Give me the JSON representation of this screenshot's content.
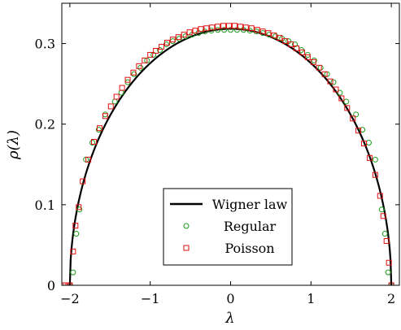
{
  "chart_data": {
    "type": "scatter",
    "xlabel": "λ",
    "ylabel": "ρ(λ)",
    "xlim": [
      -2.1,
      2.1
    ],
    "ylim": [
      0,
      0.35
    ],
    "x_ticks": [
      -2,
      -1,
      0,
      1,
      2
    ],
    "x_tick_labels": [
      "−2",
      "−1",
      "0",
      "1",
      "2"
    ],
    "y_ticks": [
      0,
      0.1,
      0.2,
      0.3
    ],
    "y_tick_labels": [
      "0",
      "0.1",
      "0.2",
      "0.3"
    ],
    "grid": false,
    "legend_position": "bottom-center",
    "series": [
      {
        "name": "Wigner law",
        "kind": "line",
        "color": "#000000",
        "formula": "sqrt(4 - x^2) / (2*pi)",
        "domain": [
          -2,
          2
        ]
      },
      {
        "name": "Regular",
        "kind": "markers",
        "marker": "circle",
        "color": "#1a9a1a",
        "points": [
          [
            -2.0,
            0.0
          ],
          [
            -1.96,
            0.016
          ],
          [
            -1.92,
            0.064
          ],
          [
            -1.88,
            0.094
          ],
          [
            -1.8,
            0.156
          ],
          [
            -1.72,
            0.177
          ],
          [
            -1.64,
            0.193
          ],
          [
            -1.56,
            0.212
          ],
          [
            -1.44,
            0.228
          ],
          [
            -1.36,
            0.239
          ],
          [
            -1.28,
            0.252
          ],
          [
            -1.2,
            0.262
          ],
          [
            -1.12,
            0.27
          ],
          [
            -1.04,
            0.279
          ],
          [
            -0.96,
            0.286
          ],
          [
            -0.88,
            0.292
          ],
          [
            -0.8,
            0.299
          ],
          [
            -0.72,
            0.303
          ],
          [
            -0.64,
            0.306
          ],
          [
            -0.56,
            0.309
          ],
          [
            -0.48,
            0.311
          ],
          [
            -0.4,
            0.313
          ],
          [
            -0.32,
            0.315
          ],
          [
            -0.24,
            0.316
          ],
          [
            -0.16,
            0.317
          ],
          [
            -0.08,
            0.317
          ],
          [
            0.0,
            0.317
          ],
          [
            0.08,
            0.317
          ],
          [
            0.16,
            0.317
          ],
          [
            0.24,
            0.316
          ],
          [
            0.32,
            0.315
          ],
          [
            0.4,
            0.313
          ],
          [
            0.48,
            0.311
          ],
          [
            0.56,
            0.309
          ],
          [
            0.64,
            0.306
          ],
          [
            0.72,
            0.303
          ],
          [
            0.8,
            0.299
          ],
          [
            0.88,
            0.292
          ],
          [
            0.96,
            0.286
          ],
          [
            1.04,
            0.279
          ],
          [
            1.12,
            0.27
          ],
          [
            1.2,
            0.262
          ],
          [
            1.28,
            0.252
          ],
          [
            1.36,
            0.239
          ],
          [
            1.44,
            0.228
          ],
          [
            1.56,
            0.212
          ],
          [
            1.64,
            0.193
          ],
          [
            1.72,
            0.177
          ],
          [
            1.8,
            0.156
          ],
          [
            1.88,
            0.094
          ],
          [
            1.92,
            0.064
          ],
          [
            1.96,
            0.016
          ],
          [
            2.0,
            0.0
          ]
        ]
      },
      {
        "name": "Poisson",
        "kind": "markers",
        "marker": "square",
        "color": "#e01010",
        "points": [
          [
            -2.08,
            0.0
          ],
          [
            -2.05,
            0.0
          ],
          [
            -2.02,
            0.0
          ],
          [
            -2.0,
            0.0
          ],
          [
            -1.96,
            0.042
          ],
          [
            -1.93,
            0.074
          ],
          [
            -1.89,
            0.097
          ],
          [
            -1.84,
            0.129
          ],
          [
            -1.77,
            0.156
          ],
          [
            -1.7,
            0.178
          ],
          [
            -1.63,
            0.195
          ],
          [
            -1.56,
            0.21
          ],
          [
            -1.49,
            0.222
          ],
          [
            -1.42,
            0.234
          ],
          [
            -1.35,
            0.245
          ],
          [
            -1.28,
            0.255
          ],
          [
            -1.21,
            0.264
          ],
          [
            -1.14,
            0.272
          ],
          [
            -1.07,
            0.279
          ],
          [
            -1.0,
            0.286
          ],
          [
            -0.93,
            0.291
          ],
          [
            -0.86,
            0.296
          ],
          [
            -0.79,
            0.301
          ],
          [
            -0.72,
            0.305
          ],
          [
            -0.65,
            0.308
          ],
          [
            -0.58,
            0.311
          ],
          [
            -0.51,
            0.314
          ],
          [
            -0.44,
            0.316
          ],
          [
            -0.37,
            0.318
          ],
          [
            -0.3,
            0.319
          ],
          [
            -0.23,
            0.32
          ],
          [
            -0.16,
            0.321
          ],
          [
            -0.09,
            0.322
          ],
          [
            -0.02,
            0.322
          ],
          [
            0.05,
            0.322
          ],
          [
            0.12,
            0.321
          ],
          [
            0.19,
            0.32
          ],
          [
            0.26,
            0.319
          ],
          [
            0.33,
            0.317
          ],
          [
            0.4,
            0.315
          ],
          [
            0.47,
            0.313
          ],
          [
            0.54,
            0.31
          ],
          [
            0.61,
            0.307
          ],
          [
            0.68,
            0.303
          ],
          [
            0.75,
            0.299
          ],
          [
            0.82,
            0.294
          ],
          [
            0.89,
            0.289
          ],
          [
            0.96,
            0.283
          ],
          [
            1.03,
            0.277
          ],
          [
            1.1,
            0.27
          ],
          [
            1.17,
            0.262
          ],
          [
            1.24,
            0.253
          ],
          [
            1.31,
            0.243
          ],
          [
            1.38,
            0.232
          ],
          [
            1.45,
            0.22
          ],
          [
            1.52,
            0.207
          ],
          [
            1.59,
            0.192
          ],
          [
            1.66,
            0.176
          ],
          [
            1.73,
            0.158
          ],
          [
            1.8,
            0.137
          ],
          [
            1.86,
            0.111
          ],
          [
            1.9,
            0.086
          ],
          [
            1.94,
            0.055
          ],
          [
            1.97,
            0.028
          ],
          [
            2.0,
            0.0
          ]
        ]
      }
    ]
  }
}
